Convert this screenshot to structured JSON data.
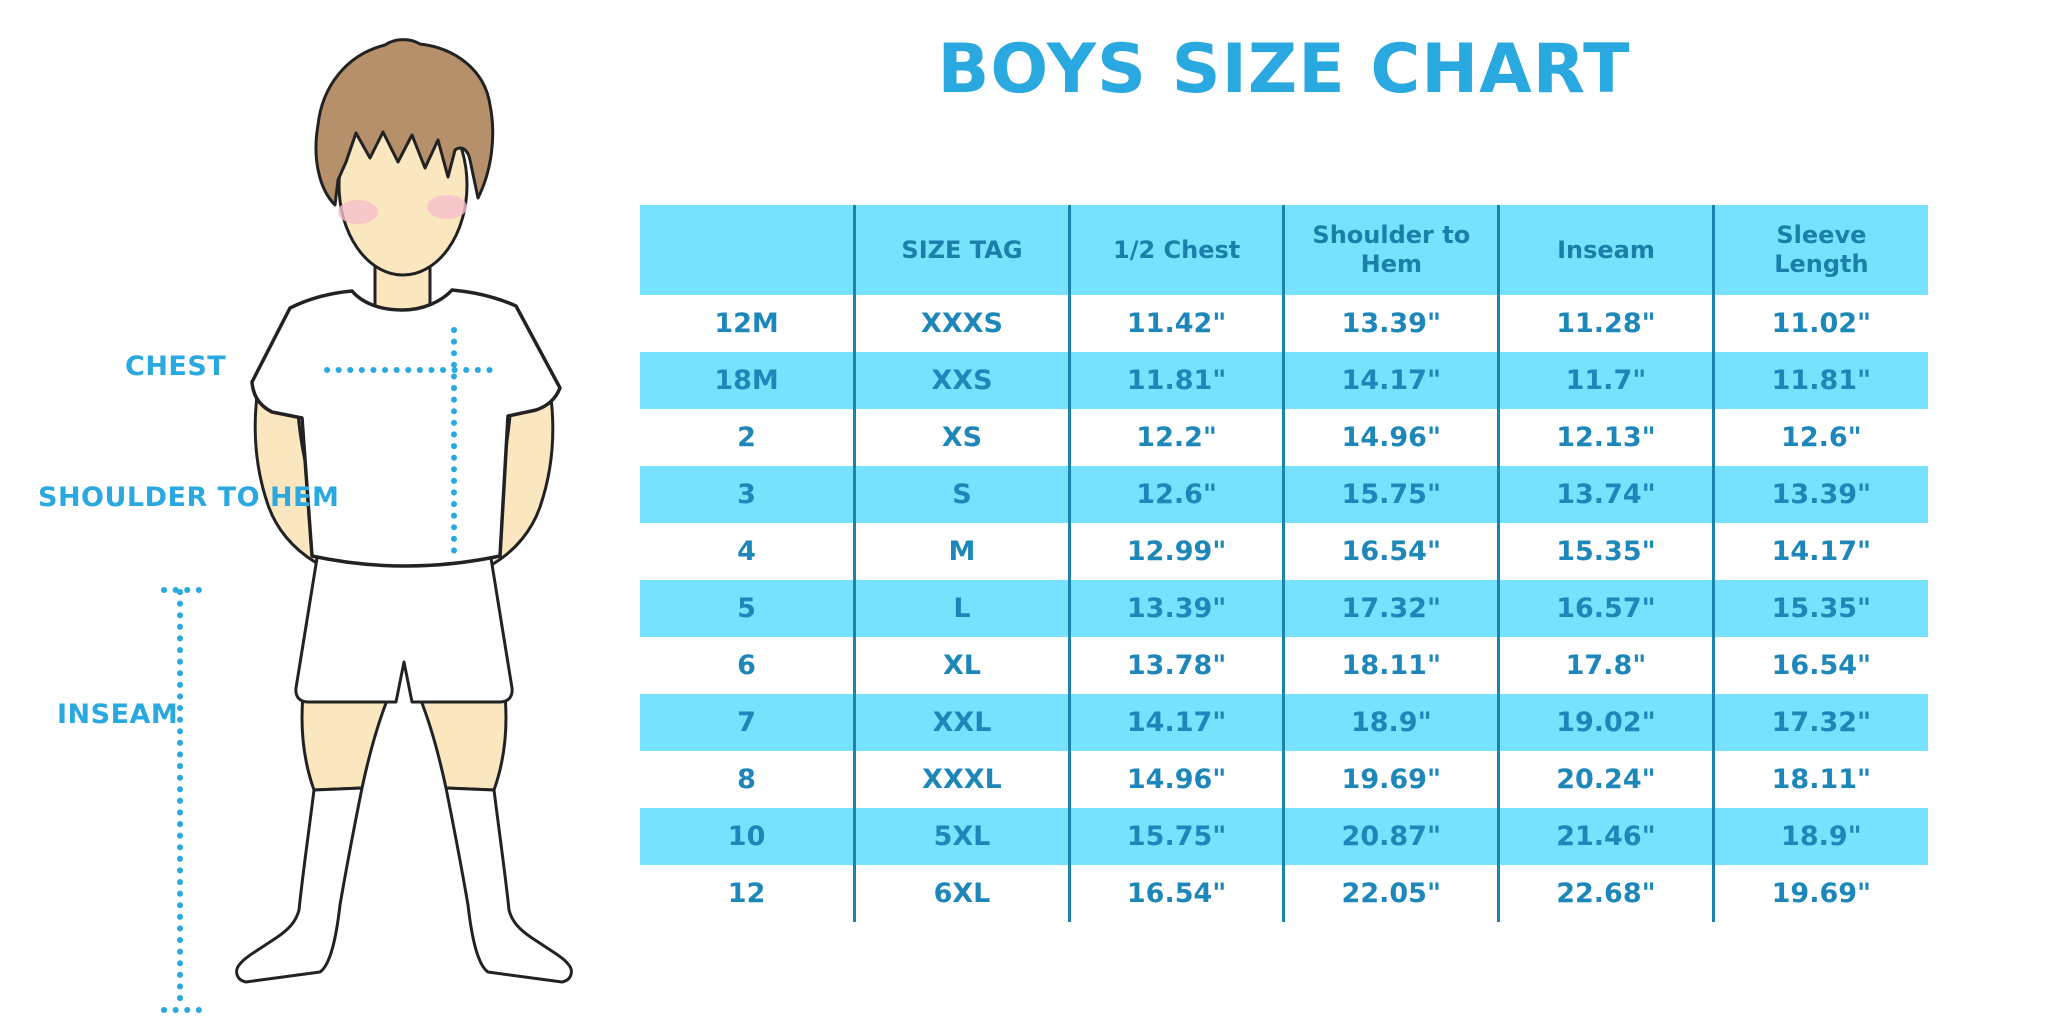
{
  "title": "BOYS SIZE CHART",
  "measurement_labels": {
    "chest": "CHEST",
    "shoulder_to_hem": "SHOULDER TO HEM",
    "inseam": "INSEAM"
  },
  "chart_data": {
    "type": "table",
    "title": "BOYS SIZE CHART",
    "columns": [
      "",
      "SIZE TAG",
      "1/2 Chest",
      "Shoulder to Hem",
      "Inseam",
      "Sleeve Length"
    ],
    "rows": [
      [
        "12M",
        "XXXS",
        "11.42\"",
        "13.39\"",
        "11.28\"",
        "11.02\""
      ],
      [
        "18M",
        "XXS",
        "11.81\"",
        "14.17\"",
        "11.7\"",
        "11.81\""
      ],
      [
        "2",
        "XS",
        "12.2\"",
        "14.96\"",
        "12.13\"",
        "12.6\""
      ],
      [
        "3",
        "S",
        "12.6\"",
        "15.75\"",
        "13.74\"",
        "13.39\""
      ],
      [
        "4",
        "M",
        "12.99\"",
        "16.54\"",
        "15.35\"",
        "14.17\""
      ],
      [
        "5",
        "L",
        "13.39\"",
        "17.32\"",
        "16.57\"",
        "15.35\""
      ],
      [
        "6",
        "XL",
        "13.78\"",
        "18.11\"",
        "17.8\"",
        "16.54\""
      ],
      [
        "7",
        "XXL",
        "14.17\"",
        "18.9\"",
        "19.02\"",
        "17.32\""
      ],
      [
        "8",
        "XXXL",
        "14.96\"",
        "19.69\"",
        "20.24\"",
        "18.11\""
      ],
      [
        "10",
        "5XL",
        "15.75\"",
        "20.87\"",
        "21.46\"",
        "18.9\""
      ],
      [
        "12",
        "6XL",
        "16.54\"",
        "22.05\"",
        "22.68\"",
        "19.69\""
      ]
    ],
    "row_striping": "white / light-cyan alternating, header light-cyan"
  },
  "colors": {
    "accent_blue": "#29A9E0",
    "table_fill_cyan": "#76E2FD",
    "header_text": "#1A7FA9",
    "cell_text": "#1E87B9",
    "column_divider": "#1C84AC",
    "skin": "#FAE6BF",
    "hair": "#B5906B",
    "blush": "#F6BFCC"
  }
}
